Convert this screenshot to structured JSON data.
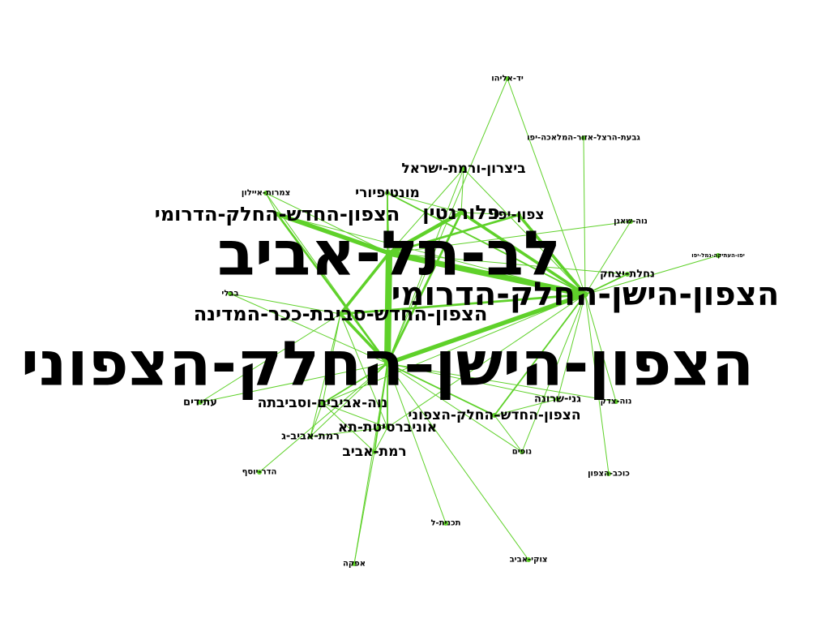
{
  "colors": {
    "edge": "#5fd12a",
    "node": "#5fd12a",
    "label": "#000000",
    "background": "#ffffff"
  },
  "nodes": [
    {
      "id": "lev",
      "label": "לב-תל-אביב",
      "size": "xl"
    },
    {
      "id": "north_n",
      "label": "הצפון-הישן–החלק-הצפוני",
      "size": "xl"
    },
    {
      "id": "north_s",
      "label": "הצפון-הישן-החלק-הדרומי",
      "size": "l"
    },
    {
      "id": "new_kikar",
      "label": "הצפון-החדש-סביבת-ככר-המדינה",
      "size": "m"
    },
    {
      "id": "new_s",
      "label": "הצפון-החדש-החלק-הדרומי",
      "size": "m"
    },
    {
      "id": "florentin",
      "label": "פלורנטין",
      "size": "m"
    },
    {
      "id": "tzafon_yafo",
      "label": "צפון-יפו",
      "size": "s"
    },
    {
      "id": "montefiore",
      "label": "מונטיפיורי",
      "size": "s"
    },
    {
      "id": "bitzaron",
      "label": "ביצרון-ורמת-ישראל",
      "size": "s"
    },
    {
      "id": "neve_avivim",
      "label": "נוה-אביבים-וסביבתה",
      "size": "s"
    },
    {
      "id": "new_n",
      "label": "הצפון-החדש–החלק-הצפוני",
      "size": "s"
    },
    {
      "id": "university",
      "label": "אוניברסיטת-תא",
      "size": "s"
    },
    {
      "id": "ramat_aviv",
      "label": "רמת-אביב",
      "size": "s"
    },
    {
      "id": "atidim",
      "label": "עתידים",
      "size": "xs"
    },
    {
      "id": "ramat_aviv_g",
      "label": "רמת-אביב-ג",
      "size": "xs"
    },
    {
      "id": "nahalat",
      "label": "נחלת-יצחק",
      "size": "xs"
    },
    {
      "id": "gani_sarona",
      "label": "גני-שרונה",
      "size": "xs"
    },
    {
      "id": "neve_tzedek",
      "label": "נוה-צדק",
      "size": "xxs"
    },
    {
      "id": "nofim",
      "label": "נופים",
      "size": "xxs"
    },
    {
      "id": "yad_eliyahu",
      "label": "יד-אליהו",
      "size": "xxs"
    },
    {
      "id": "givat_herzl",
      "label": "גבעת-הרצל-אזור-המלאכה-יפו",
      "size": "xxs"
    },
    {
      "id": "tzameret",
      "label": "צמרות-איילון",
      "size": "xxs"
    },
    {
      "id": "neve_shaanan",
      "label": "נוה-שאנן",
      "size": "xxs"
    },
    {
      "id": "old_jaffa",
      "label": "יפו-העתיקה-נמל-יפו",
      "size": "xxxs"
    },
    {
      "id": "bavli",
      "label": "בבלי",
      "size": "xxs"
    },
    {
      "id": "hadar_yosef",
      "label": "הדר-יוסף",
      "size": "xxs"
    },
    {
      "id": "kochav_hatzafon",
      "label": "כוכב-הצפון",
      "size": "xxs"
    },
    {
      "id": "tochnit_l",
      "label": "תכנית-ל",
      "size": "xxs"
    },
    {
      "id": "tzukei_aviv",
      "label": "צוקי-אביב",
      "size": "xxs"
    },
    {
      "id": "afeka",
      "label": "אפקה",
      "size": "xxs"
    }
  ],
  "edges": [
    {
      "source": "lev",
      "target": "north_n",
      "weight": 9
    },
    {
      "source": "lev",
      "target": "north_s",
      "weight": 8
    },
    {
      "source": "north_n",
      "target": "north_s",
      "weight": 6
    },
    {
      "source": "lev",
      "target": "new_s",
      "weight": 6
    },
    {
      "source": "lev",
      "target": "florentin",
      "weight": 5
    },
    {
      "source": "north_s",
      "target": "florentin",
      "weight": 4
    },
    {
      "source": "north_s",
      "target": "tzafon_yafo",
      "weight": 4
    },
    {
      "source": "lev",
      "target": "new_kikar",
      "weight": 4
    },
    {
      "source": "north_n",
      "target": "new_kikar",
      "weight": 4
    },
    {
      "source": "north_s",
      "target": "new_kikar",
      "weight": 3
    },
    {
      "source": "north_n",
      "target": "new_s",
      "weight": 3
    },
    {
      "source": "north_n",
      "target": "florentin",
      "weight": 3
    },
    {
      "source": "lev",
      "target": "tzafon_yafo",
      "weight": 3
    },
    {
      "source": "north_s",
      "target": "montefiore",
      "weight": 2
    },
    {
      "source": "north_n",
      "target": "montefiore",
      "weight": 2
    },
    {
      "source": "north_n",
      "target": "neve_avivim",
      "weight": 2
    },
    {
      "source": "north_n",
      "target": "new_n",
      "weight": 2
    },
    {
      "source": "north_n",
      "target": "university",
      "weight": 2
    },
    {
      "source": "north_n",
      "target": "ramat_aviv",
      "weight": 2
    },
    {
      "source": "north_s",
      "target": "nahalat",
      "weight": 2
    },
    {
      "source": "north_s",
      "target": "new_n",
      "weight": 2
    },
    {
      "source": "lev",
      "target": "bitzaron",
      "weight": 1
    },
    {
      "source": "north_s",
      "target": "bitzaron",
      "weight": 1
    },
    {
      "source": "north_n",
      "target": "bitzaron",
      "weight": 1
    },
    {
      "source": "north_s",
      "target": "yad_eliyahu",
      "weight": 1
    },
    {
      "source": "north_s",
      "target": "givat_herzl",
      "weight": 1
    },
    {
      "source": "north_s",
      "target": "neve_shaanan",
      "weight": 1
    },
    {
      "source": "north_s",
      "target": "old_jaffa",
      "weight": 1
    },
    {
      "source": "north_s",
      "target": "neve_tzedek",
      "weight": 1
    },
    {
      "source": "north_s",
      "target": "gani_sarona",
      "weight": 1
    },
    {
      "source": "north_s",
      "target": "kochav_hatzafon",
      "weight": 1
    },
    {
      "source": "north_s",
      "target": "nofim",
      "weight": 1
    },
    {
      "source": "north_s",
      "target": "new_s",
      "weight": 1
    },
    {
      "source": "north_s",
      "target": "neve_avivim",
      "weight": 1
    },
    {
      "source": "north_s",
      "target": "university",
      "weight": 1
    },
    {
      "source": "north_n",
      "target": "tzameret",
      "weight": 1
    },
    {
      "source": "north_n",
      "target": "bavli",
      "weight": 1
    },
    {
      "source": "north_n",
      "target": "atidim",
      "weight": 1
    },
    {
      "source": "north_n",
      "target": "ramat_aviv_g",
      "weight": 1
    },
    {
      "source": "north_n",
      "target": "hadar_yosef",
      "weight": 1
    },
    {
      "source": "north_n",
      "target": "tochnit_l",
      "weight": 1
    },
    {
      "source": "north_n",
      "target": "tzukei_aviv",
      "weight": 1
    },
    {
      "source": "north_n",
      "target": "afeka",
      "weight": 1
    },
    {
      "source": "north_n",
      "target": "nofim",
      "weight": 1
    },
    {
      "source": "north_n",
      "target": "gani_sarona",
      "weight": 1
    },
    {
      "source": "north_n",
      "target": "neve_tzedek",
      "weight": 1
    },
    {
      "source": "north_n",
      "target": "yad_eliyahu",
      "weight": 1
    },
    {
      "source": "lev",
      "target": "tzameret",
      "weight": 1
    },
    {
      "source": "lev",
      "target": "montefiore",
      "weight": 1
    },
    {
      "source": "lev",
      "target": "nahalat",
      "weight": 1
    },
    {
      "source": "lev",
      "target": "neve_shaanan",
      "weight": 1
    },
    {
      "source": "new_kikar",
      "target": "atidim",
      "weight": 1
    },
    {
      "source": "new_kikar",
      "target": "ramat_aviv_g",
      "weight": 1
    },
    {
      "source": "new_kikar",
      "target": "university",
      "weight": 1
    },
    {
      "source": "new_kikar",
      "target": "neve_avivim",
      "weight": 1
    },
    {
      "source": "new_kikar",
      "target": "bavli",
      "weight": 1
    },
    {
      "source": "new_s",
      "target": "tzameret",
      "weight": 1
    },
    {
      "source": "neve_avivim",
      "target": "ramat_aviv_g",
      "weight": 1
    },
    {
      "source": "neve_avivim",
      "target": "university",
      "weight": 1
    },
    {
      "source": "university",
      "target": "ramat_aviv",
      "weight": 1
    },
    {
      "source": "university",
      "target": "ramat_aviv_g",
      "weight": 1
    },
    {
      "source": "ramat_aviv",
      "target": "afeka",
      "weight": 1
    },
    {
      "source": "ramat_aviv",
      "target": "neve_avivim",
      "weight": 1
    },
    {
      "source": "new_n",
      "target": "nofim",
      "weight": 1
    },
    {
      "source": "new_n",
      "target": "gani_sarona",
      "weight": 1
    },
    {
      "source": "florentin",
      "target": "tzafon_yafo",
      "weight": 1
    },
    {
      "source": "montefiore",
      "target": "florentin",
      "weight": 1
    },
    {
      "source": "bitzaron",
      "target": "florentin",
      "weight": 1
    }
  ]
}
